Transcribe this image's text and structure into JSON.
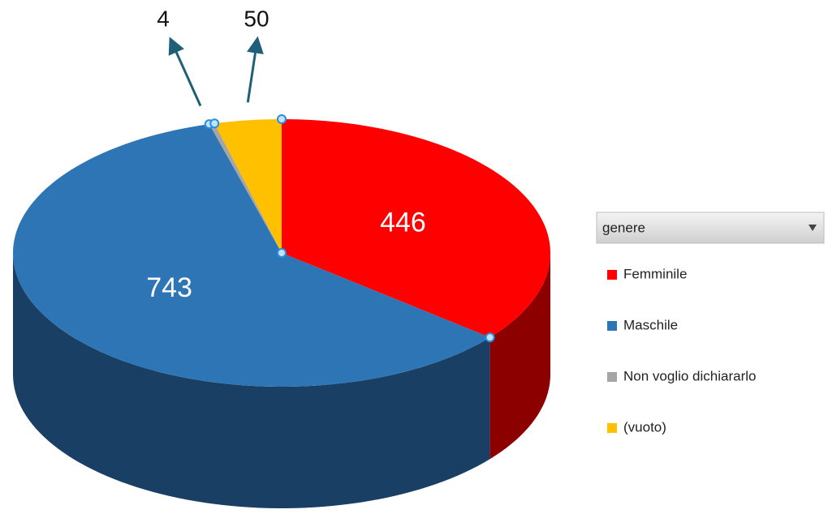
{
  "chart_data": {
    "type": "pie3d",
    "legend_title": "genere",
    "categories": [
      "Femminile",
      "Maschile",
      "Non voglio dichiararlo",
      "(vuoto)"
    ],
    "values": [
      446,
      743,
      4,
      50
    ],
    "colors": [
      "#ff0000",
      "#2e75b6",
      "#a5a5a5",
      "#ffc000"
    ],
    "legend": "right"
  }
}
